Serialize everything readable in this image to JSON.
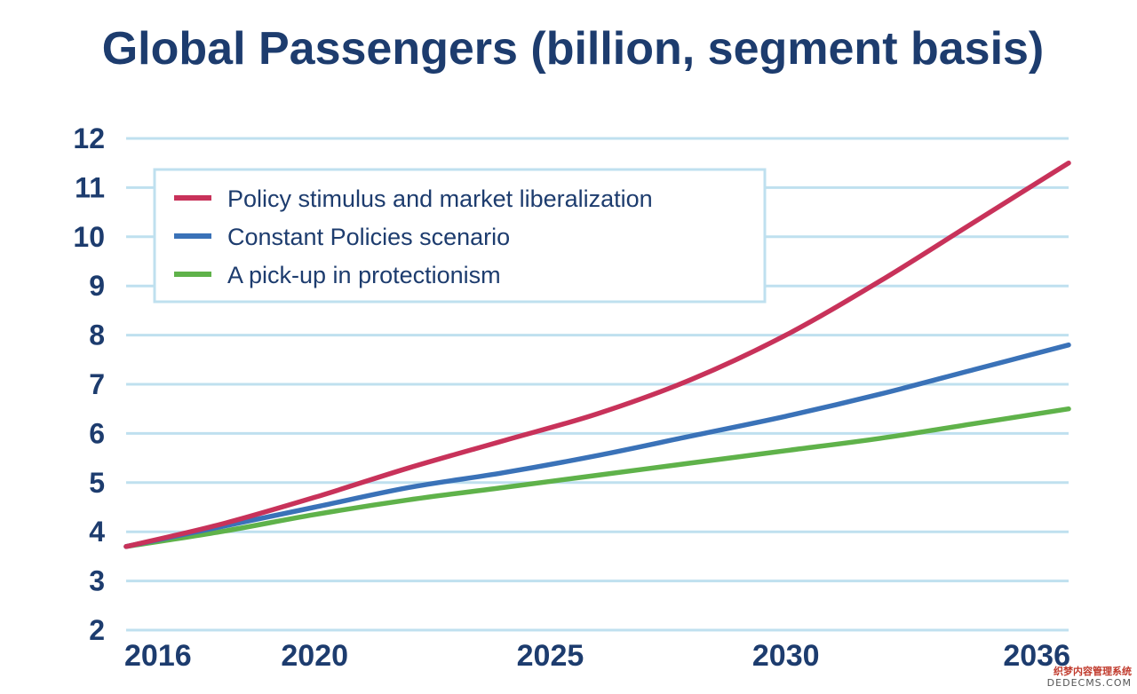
{
  "chart_data": {
    "type": "line",
    "title": "Global Passengers (billion, segment basis)",
    "xlabel": "",
    "ylabel": "",
    "xlim": [
      2016,
      2036
    ],
    "ylim": [
      2,
      12
    ],
    "yticks": [
      "2",
      "3",
      "4",
      "5",
      "6",
      "7",
      "8",
      "9",
      "10",
      "11",
      "12"
    ],
    "xticks": [
      "2016",
      "2020",
      "2025",
      "2030",
      "2036"
    ],
    "grid": true,
    "legend_position": "top-left",
    "x": [
      2016,
      2018,
      2020,
      2022,
      2024,
      2026,
      2028,
      2030,
      2032,
      2034,
      2036
    ],
    "series": [
      {
        "name": "Policy stimulus and market liberalization",
        "color": "#c8325a",
        "values": [
          3.7,
          4.15,
          4.7,
          5.3,
          5.85,
          6.4,
          7.1,
          8.0,
          9.1,
          10.3,
          11.5
        ]
      },
      {
        "name": "Constant Policies scenario",
        "color": "#3a72b8",
        "values": [
          3.7,
          4.1,
          4.5,
          4.9,
          5.2,
          5.55,
          5.95,
          6.35,
          6.8,
          7.3,
          7.8
        ]
      },
      {
        "name": "A pick-up in protectionism",
        "color": "#5fb24a",
        "values": [
          3.7,
          4.0,
          4.35,
          4.65,
          4.9,
          5.15,
          5.4,
          5.65,
          5.9,
          6.2,
          6.5
        ]
      }
    ]
  },
  "watermark": {
    "line1": "织梦内容管理系统",
    "line2": "DEDECMS.COM"
  }
}
